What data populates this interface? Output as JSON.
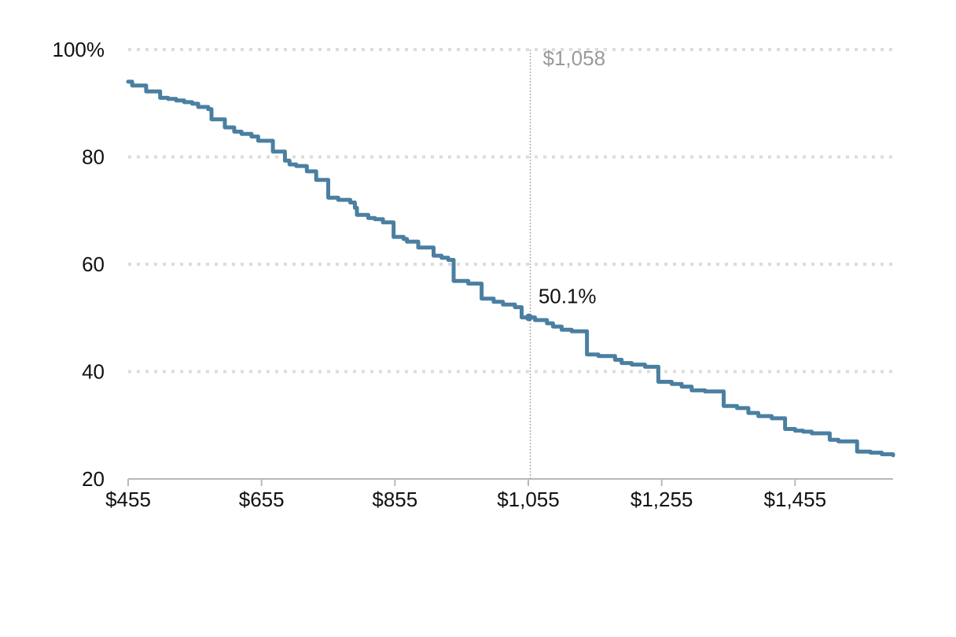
{
  "chart_data": {
    "type": "line",
    "title": "",
    "xlabel": "",
    "ylabel": "",
    "xlim": [
      455,
      1602
    ],
    "ylim": [
      20,
      100
    ],
    "grid": "horizontal-dotted",
    "legend": "none",
    "x_ticks": [
      {
        "value": 455,
        "label": "$455"
      },
      {
        "value": 655,
        "label": "$655"
      },
      {
        "value": 855,
        "label": "$855"
      },
      {
        "value": 1055,
        "label": "$1,055"
      },
      {
        "value": 1255,
        "label": "$1,255"
      },
      {
        "value": 1455,
        "label": "$1,455"
      }
    ],
    "y_ticks": [
      {
        "value": 100,
        "label": "100%"
      },
      {
        "value": 80,
        "label": "80"
      },
      {
        "value": 60,
        "label": "60"
      },
      {
        "value": 40,
        "label": "40"
      },
      {
        "value": 20,
        "label": "20"
      }
    ],
    "series": [
      {
        "color": "#4a7fa1",
        "step": true,
        "points": [
          [
            455,
            94.0
          ],
          [
            461,
            93.3
          ],
          [
            482,
            92.2
          ],
          [
            503,
            91.0
          ],
          [
            515,
            90.8
          ],
          [
            527,
            90.5
          ],
          [
            539,
            90.2
          ],
          [
            551,
            89.9
          ],
          [
            560,
            89.3
          ],
          [
            575,
            88.9
          ],
          [
            580,
            87.0
          ],
          [
            600,
            85.5
          ],
          [
            614,
            84.7
          ],
          [
            625,
            84.3
          ],
          [
            640,
            83.8
          ],
          [
            650,
            83.0
          ],
          [
            672,
            81.0
          ],
          [
            690,
            79.3
          ],
          [
            697,
            78.6
          ],
          [
            707,
            78.3
          ],
          [
            723,
            77.3
          ],
          [
            737,
            75.7
          ],
          [
            755,
            72.4
          ],
          [
            770,
            72.0
          ],
          [
            788,
            71.5
          ],
          [
            795,
            70.5
          ],
          [
            798,
            69.2
          ],
          [
            815,
            68.6
          ],
          [
            825,
            68.4
          ],
          [
            837,
            67.8
          ],
          [
            853,
            65.1
          ],
          [
            868,
            64.7
          ],
          [
            873,
            64.2
          ],
          [
            890,
            63.1
          ],
          [
            913,
            61.6
          ],
          [
            925,
            61.2
          ],
          [
            935,
            60.8
          ],
          [
            943,
            56.9
          ],
          [
            965,
            56.4
          ],
          [
            985,
            53.6
          ],
          [
            1003,
            53.0
          ],
          [
            1017,
            52.5
          ],
          [
            1035,
            52.0
          ],
          [
            1045,
            50.1
          ],
          [
            1065,
            49.6
          ],
          [
            1083,
            49.0
          ],
          [
            1092,
            48.4
          ],
          [
            1105,
            47.8
          ],
          [
            1120,
            47.5
          ],
          [
            1143,
            43.2
          ],
          [
            1160,
            42.9
          ],
          [
            1185,
            42.2
          ],
          [
            1195,
            41.6
          ],
          [
            1210,
            41.3
          ],
          [
            1230,
            40.9
          ],
          [
            1250,
            38.1
          ],
          [
            1270,
            37.7
          ],
          [
            1285,
            37.2
          ],
          [
            1300,
            36.5
          ],
          [
            1320,
            36.3
          ],
          [
            1348,
            33.6
          ],
          [
            1368,
            33.2
          ],
          [
            1385,
            32.3
          ],
          [
            1400,
            31.7
          ],
          [
            1420,
            31.3
          ],
          [
            1440,
            29.3
          ],
          [
            1455,
            29.0
          ],
          [
            1467,
            28.8
          ],
          [
            1480,
            28.5
          ],
          [
            1507,
            27.3
          ],
          [
            1520,
            27.0
          ],
          [
            1548,
            25.1
          ],
          [
            1568,
            24.9
          ],
          [
            1585,
            24.6
          ],
          [
            1602,
            24.4
          ]
        ]
      }
    ],
    "reference_line": {
      "x": 1058,
      "label": "$1,058"
    },
    "highlight_point": {
      "x": 1056,
      "y": 50.1,
      "label": "50.1%"
    }
  }
}
